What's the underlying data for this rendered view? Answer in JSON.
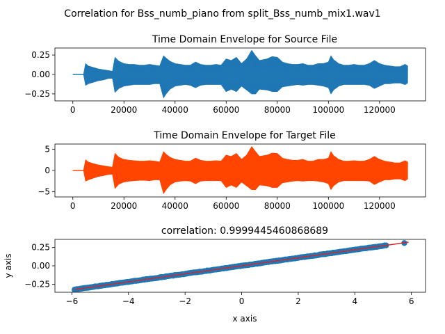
{
  "figure": {
    "suptitle": "Correlation for Bss_numb_piano from split_Bss_numb_mix1.wav1"
  },
  "colors": {
    "source": "#1f77b4",
    "target": "#ff4500",
    "scatter": "#1f77b4",
    "fit_line": "#d62728"
  },
  "chart_data": [
    {
      "type": "line",
      "title": "Time Domain Envelope for Source File",
      "xlim": [
        -7000,
        138000
      ],
      "ylim": [
        -0.34,
        0.34
      ],
      "x_ticks": [
        0,
        20000,
        40000,
        60000,
        80000,
        100000,
        120000
      ],
      "x_tick_labels": [
        "0",
        "20000",
        "40000",
        "60000",
        "80000",
        "100000",
        "120000"
      ],
      "y_ticks": [
        -0.25,
        0.0,
        0.25
      ],
      "y_tick_labels": [
        "−0.25",
        "0.00",
        "0.25"
      ],
      "series": [
        {
          "x": [
            0,
            2000,
            4200,
            5000,
            6000,
            8000,
            10000,
            12000,
            14000,
            15500,
            16500,
            18000,
            20000,
            22000,
            24000,
            26000,
            28000,
            30000,
            32000,
            34000,
            35500,
            36500,
            38000,
            40000,
            42000,
            44000,
            46000,
            48000,
            50000,
            52000,
            54000,
            56000,
            58000,
            60000,
            62000,
            64000,
            66000,
            68000,
            70000,
            71500,
            73000,
            76000,
            78000,
            80000,
            82000,
            84000,
            86000,
            88000,
            90000,
            92000,
            94000,
            96000,
            98000,
            100000,
            101000,
            102000,
            104000,
            106000,
            108000,
            110000,
            112000,
            114000,
            116000,
            118000,
            120000,
            122000,
            124000,
            126000,
            128000,
            130000,
            131000
          ],
          "upper": [
            0.0,
            0.0,
            0.0,
            0.14,
            0.11,
            0.09,
            0.07,
            0.06,
            0.05,
            0.04,
            0.22,
            0.17,
            0.14,
            0.13,
            0.13,
            0.12,
            0.12,
            0.13,
            0.12,
            0.11,
            0.24,
            0.21,
            0.17,
            0.14,
            0.13,
            0.12,
            0.12,
            0.16,
            0.13,
            0.12,
            0.12,
            0.13,
            0.12,
            0.2,
            0.18,
            0.22,
            0.14,
            0.2,
            0.31,
            0.24,
            0.18,
            0.2,
            0.23,
            0.22,
            0.16,
            0.14,
            0.13,
            0.13,
            0.14,
            0.12,
            0.12,
            0.14,
            0.14,
            0.16,
            0.24,
            0.19,
            0.14,
            0.12,
            0.12,
            0.13,
            0.12,
            0.12,
            0.14,
            0.18,
            0.14,
            0.12,
            0.11,
            0.1,
            0.1,
            0.13,
            0.11
          ],
          "lower": [
            0.0,
            0.0,
            0.0,
            -0.14,
            -0.12,
            -0.1,
            -0.08,
            -0.07,
            -0.05,
            -0.05,
            -0.23,
            -0.18,
            -0.15,
            -0.14,
            -0.13,
            -0.13,
            -0.13,
            -0.13,
            -0.12,
            -0.12,
            -0.3,
            -0.25,
            -0.19,
            -0.15,
            -0.14,
            -0.13,
            -0.14,
            -0.17,
            -0.14,
            -0.13,
            -0.13,
            -0.13,
            -0.13,
            -0.22,
            -0.19,
            -0.22,
            -0.15,
            -0.2,
            -0.25,
            -0.25,
            -0.19,
            -0.2,
            -0.22,
            -0.22,
            -0.16,
            -0.15,
            -0.14,
            -0.13,
            -0.14,
            -0.13,
            -0.13,
            -0.14,
            -0.15,
            -0.17,
            -0.25,
            -0.2,
            -0.15,
            -0.13,
            -0.13,
            -0.13,
            -0.13,
            -0.13,
            -0.14,
            -0.18,
            -0.15,
            -0.12,
            -0.12,
            -0.11,
            -0.11,
            -0.13,
            -0.11
          ]
        }
      ]
    },
    {
      "type": "line",
      "title": "Time Domain Envelope for Target File",
      "xlim": [
        -7000,
        138000
      ],
      "ylim": [
        -6.2,
        6.2
      ],
      "x_ticks": [
        0,
        20000,
        40000,
        60000,
        80000,
        100000,
        120000
      ],
      "x_tick_labels": [
        "0",
        "20000",
        "40000",
        "60000",
        "80000",
        "100000",
        "120000"
      ],
      "y_ticks": [
        -5,
        0,
        5
      ],
      "y_tick_labels": [
        "−5",
        "0",
        "5"
      ],
      "series": [
        {
          "x": [
            0,
            2000,
            4200,
            5000,
            6000,
            8000,
            10000,
            12000,
            14000,
            15500,
            16500,
            18000,
            20000,
            22000,
            24000,
            26000,
            28000,
            30000,
            32000,
            34000,
            35500,
            36500,
            38000,
            40000,
            42000,
            44000,
            46000,
            48000,
            50000,
            52000,
            54000,
            56000,
            58000,
            60000,
            62000,
            64000,
            66000,
            68000,
            70000,
            71500,
            73000,
            76000,
            78000,
            80000,
            82000,
            84000,
            86000,
            88000,
            90000,
            92000,
            94000,
            96000,
            98000,
            100000,
            101000,
            102000,
            104000,
            106000,
            108000,
            110000,
            112000,
            114000,
            116000,
            118000,
            120000,
            122000,
            124000,
            126000,
            128000,
            130000,
            131000
          ],
          "upper": [
            0.0,
            0.0,
            0.0,
            2.5,
            2.0,
            1.6,
            1.3,
            1.1,
            0.9,
            0.8,
            4.0,
            3.1,
            2.6,
            2.4,
            2.3,
            2.2,
            2.2,
            2.3,
            2.2,
            2.0,
            4.4,
            3.8,
            3.1,
            2.6,
            2.4,
            2.2,
            2.2,
            2.9,
            2.4,
            2.2,
            2.2,
            2.3,
            2.2,
            3.6,
            3.3,
            4.0,
            2.6,
            3.6,
            5.6,
            4.4,
            3.3,
            3.6,
            4.1,
            4.0,
            2.9,
            2.6,
            2.4,
            2.4,
            2.6,
            2.2,
            2.2,
            2.6,
            2.6,
            2.9,
            4.4,
            3.5,
            2.6,
            2.2,
            2.2,
            2.3,
            2.2,
            2.2,
            2.6,
            3.3,
            2.6,
            2.2,
            2.0,
            1.8,
            1.8,
            2.3,
            2.0
          ],
          "lower": [
            0.0,
            0.0,
            0.0,
            -2.5,
            -2.2,
            -1.8,
            -1.4,
            -1.2,
            -0.9,
            -0.9,
            -4.2,
            -3.2,
            -2.7,
            -2.5,
            -2.4,
            -2.3,
            -2.3,
            -2.4,
            -2.2,
            -2.2,
            -5.4,
            -4.5,
            -3.4,
            -2.7,
            -2.5,
            -2.4,
            -2.5,
            -3.1,
            -2.5,
            -2.4,
            -2.4,
            -2.4,
            -2.4,
            -4.0,
            -3.4,
            -4.0,
            -2.7,
            -3.6,
            -4.5,
            -4.5,
            -3.4,
            -3.6,
            -4.0,
            -4.0,
            -2.9,
            -2.7,
            -2.5,
            -2.4,
            -2.5,
            -2.4,
            -2.4,
            -2.5,
            -2.7,
            -3.1,
            -4.5,
            -3.6,
            -2.7,
            -2.4,
            -2.4,
            -2.4,
            -2.4,
            -2.4,
            -2.5,
            -3.3,
            -2.7,
            -2.2,
            -2.2,
            -2.0,
            -2.0,
            -2.4,
            -2.0
          ]
        }
      ]
    },
    {
      "type": "scatter",
      "title": "correlation: 0.9999445460868689",
      "xlabel": "x axis",
      "ylabel": "y axis",
      "xlim": [
        -6.6,
        6.5
      ],
      "ylim": [
        -0.36,
        0.36
      ],
      "x_ticks": [
        -6,
        -4,
        -2,
        0,
        2,
        4,
        6
      ],
      "x_tick_labels": [
        "−6",
        "−4",
        "−2",
        "0",
        "2",
        "4",
        "6"
      ],
      "y_ticks": [
        -0.25,
        0.0,
        0.25
      ],
      "y_tick_labels": [
        "−0.25",
        "0.00",
        "0.25"
      ],
      "points": {
        "x_range": [
          -5.9,
          5.1
        ],
        "slope": 0.0546,
        "outliers": [
          [
            5.75,
            0.31
          ],
          [
            -5.9,
            -0.33
          ]
        ]
      },
      "fit_line": {
        "x": [
          -5.9,
          5.9
        ],
        "y": [
          -0.322,
          0.322
        ]
      }
    }
  ]
}
